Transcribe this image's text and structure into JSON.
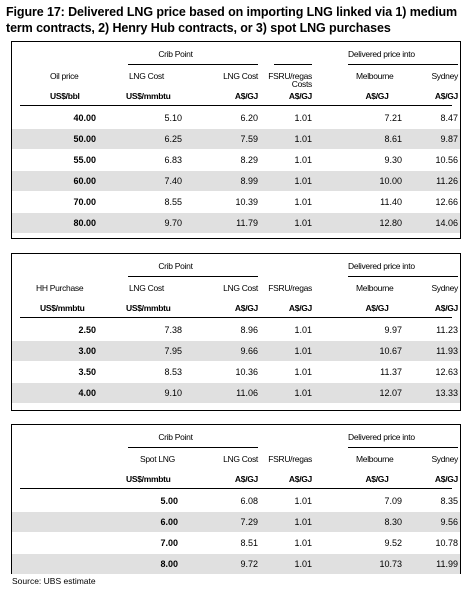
{
  "title": "Figure 17: Delivered LNG price based on importing LNG linked via 1) medium term contracts, 2) Henry Hub contracts, or 3) spot LNG purchases",
  "source": "Source: UBS estimate",
  "tables": [
    {
      "group_crib": "Crib Point",
      "group_delivered": "Delivered price into",
      "headers": [
        "Oil price",
        "LNG Cost",
        "LNG Cost",
        "FSRU/regas",
        "Melbourne",
        "Sydney"
      ],
      "headers2": [
        "",
        "",
        "",
        "Costs",
        "",
        ""
      ],
      "units": [
        "US$/bbl",
        "US$/mmbtu",
        "A$/GJ",
        "A$/GJ",
        "A$/GJ",
        "A$/GJ"
      ],
      "rows": [
        [
          "40.00",
          "5.10",
          "6.20",
          "1.01",
          "7.21",
          "8.47"
        ],
        [
          "50.00",
          "6.25",
          "7.59",
          "1.01",
          "8.61",
          "9.87"
        ],
        [
          "55.00",
          "6.83",
          "8.29",
          "1.01",
          "9.30",
          "10.56"
        ],
        [
          "60.00",
          "7.40",
          "8.99",
          "1.01",
          "10.00",
          "11.26"
        ],
        [
          "70.00",
          "8.55",
          "10.39",
          "1.01",
          "11.40",
          "12.66"
        ],
        [
          "80.00",
          "9.70",
          "11.79",
          "1.01",
          "12.80",
          "14.06"
        ]
      ]
    },
    {
      "group_crib": "Crib Point",
      "group_delivered": "Delivered price into",
      "headers": [
        "HH Purchase",
        "LNG Cost",
        "LNG Cost",
        "FSRU/regas",
        "Melbourne",
        "Sydney"
      ],
      "units": [
        "US$/mmbtu",
        "US$/mmbtu",
        "A$/GJ",
        "A$/GJ",
        "A$/GJ",
        "A$/GJ"
      ],
      "rows": [
        [
          "2.50",
          "7.38",
          "8.96",
          "1.01",
          "9.97",
          "11.23"
        ],
        [
          "3.00",
          "7.95",
          "9.66",
          "1.01",
          "10.67",
          "11.93"
        ],
        [
          "3.50",
          "8.53",
          "10.36",
          "1.01",
          "11.37",
          "12.63"
        ],
        [
          "4.00",
          "9.10",
          "11.06",
          "1.01",
          "12.07",
          "13.33"
        ]
      ]
    },
    {
      "group_crib": "Crib Point",
      "group_delivered": "Delivered price into",
      "headers": [
        "Spot LNG",
        "LNG Cost",
        "FSRU/regas",
        "Melbourne",
        "Sydney"
      ],
      "units": [
        "US$/mmbtu",
        "A$/GJ",
        "A$/GJ",
        "A$/GJ",
        "A$/GJ"
      ],
      "rows": [
        [
          "5.00",
          "6.08",
          "1.01",
          "7.09",
          "8.35"
        ],
        [
          "6.00",
          "7.29",
          "1.01",
          "8.30",
          "9.56"
        ],
        [
          "7.00",
          "8.51",
          "1.01",
          "9.52",
          "10.78"
        ],
        [
          "8.00",
          "9.72",
          "1.01",
          "10.73",
          "11.99"
        ]
      ]
    }
  ]
}
